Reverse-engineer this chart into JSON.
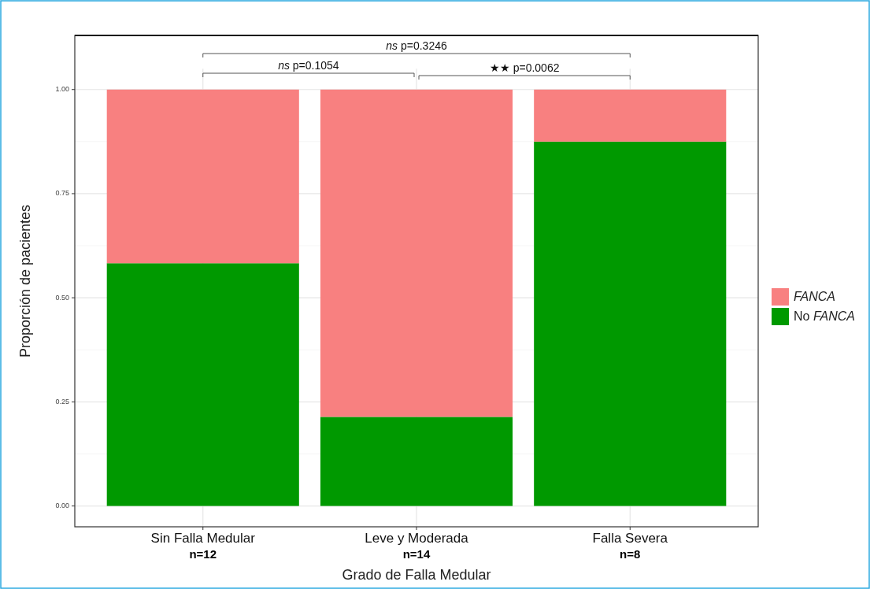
{
  "chart_data": {
    "type": "bar",
    "stacked": true,
    "xlabel": "Grado de Falla Medular",
    "ylabel": "Proporción de pacientes",
    "categories": [
      "Sin Falla Medular",
      "Leve y Moderada",
      "Falla Severa"
    ],
    "series": [
      {
        "name": "No FANCA",
        "color": "#009900",
        "values": [
          0.583,
          0.214,
          0.875
        ]
      },
      {
        "name": "FANCA",
        "color": "#f88080",
        "values": [
          0.417,
          0.786,
          0.125
        ]
      }
    ],
    "ylim": [
      -0.05,
      1.13
    ],
    "yticks": [
      {
        "value": 0,
        "label": "0.00"
      },
      {
        "value": 0.25,
        "label": "0.25"
      },
      {
        "value": 0.5,
        "label": "0.50"
      },
      {
        "value": 0.75,
        "label": "0.75"
      },
      {
        "value": 1,
        "label": "1.00"
      }
    ],
    "grid": true,
    "legend": "right",
    "annotations": [
      "n=12",
      "n=14",
      "n=8",
      "ns p=0.3246",
      "ns p=0.1054",
      "★★ p=0.0062"
    ]
  }
}
